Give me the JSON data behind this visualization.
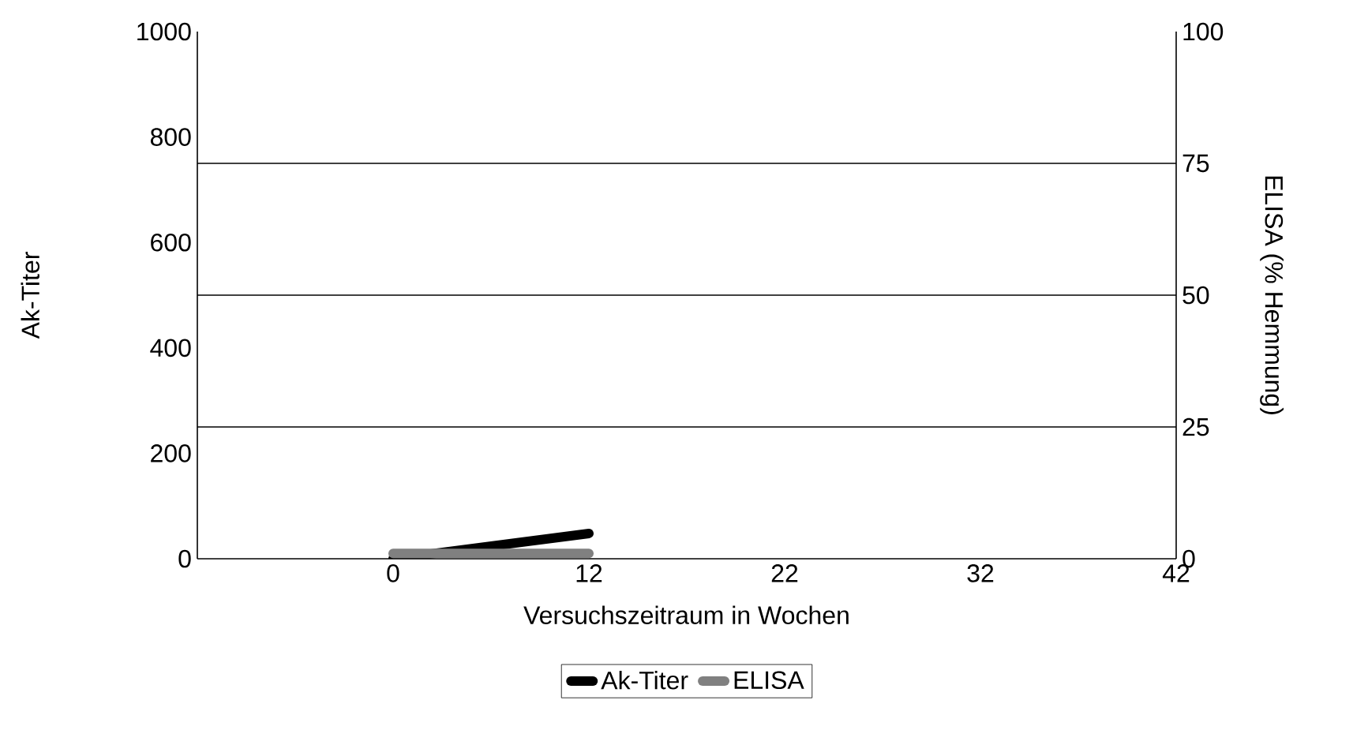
{
  "chart_data": {
    "type": "line",
    "xlabel": "Versuchszeitraum in Wochen",
    "ylabel": "Ak-Titer",
    "y2label": "ELISA (% Hemmung)",
    "categories": [
      null,
      "0",
      "12",
      "22",
      "32",
      "42"
    ],
    "series": [
      {
        "name": "Ak-Titer",
        "color": "#000000",
        "values": [
          null,
          0,
          48,
          null,
          null,
          null
        ]
      },
      {
        "name": "ELISA",
        "color": "#808080",
        "axis": "y2",
        "values": [
          null,
          1,
          1,
          null,
          null,
          null
        ]
      }
    ],
    "ylim": [
      0,
      1000
    ],
    "yticks": [
      0,
      200,
      400,
      600,
      800,
      1000
    ],
    "y2lim": [
      0,
      100
    ],
    "y2ticks": [
      0,
      25,
      50,
      75,
      100
    ],
    "grid": "y",
    "legend": "bottom",
    "marker": "none",
    "line_style": "solid"
  }
}
